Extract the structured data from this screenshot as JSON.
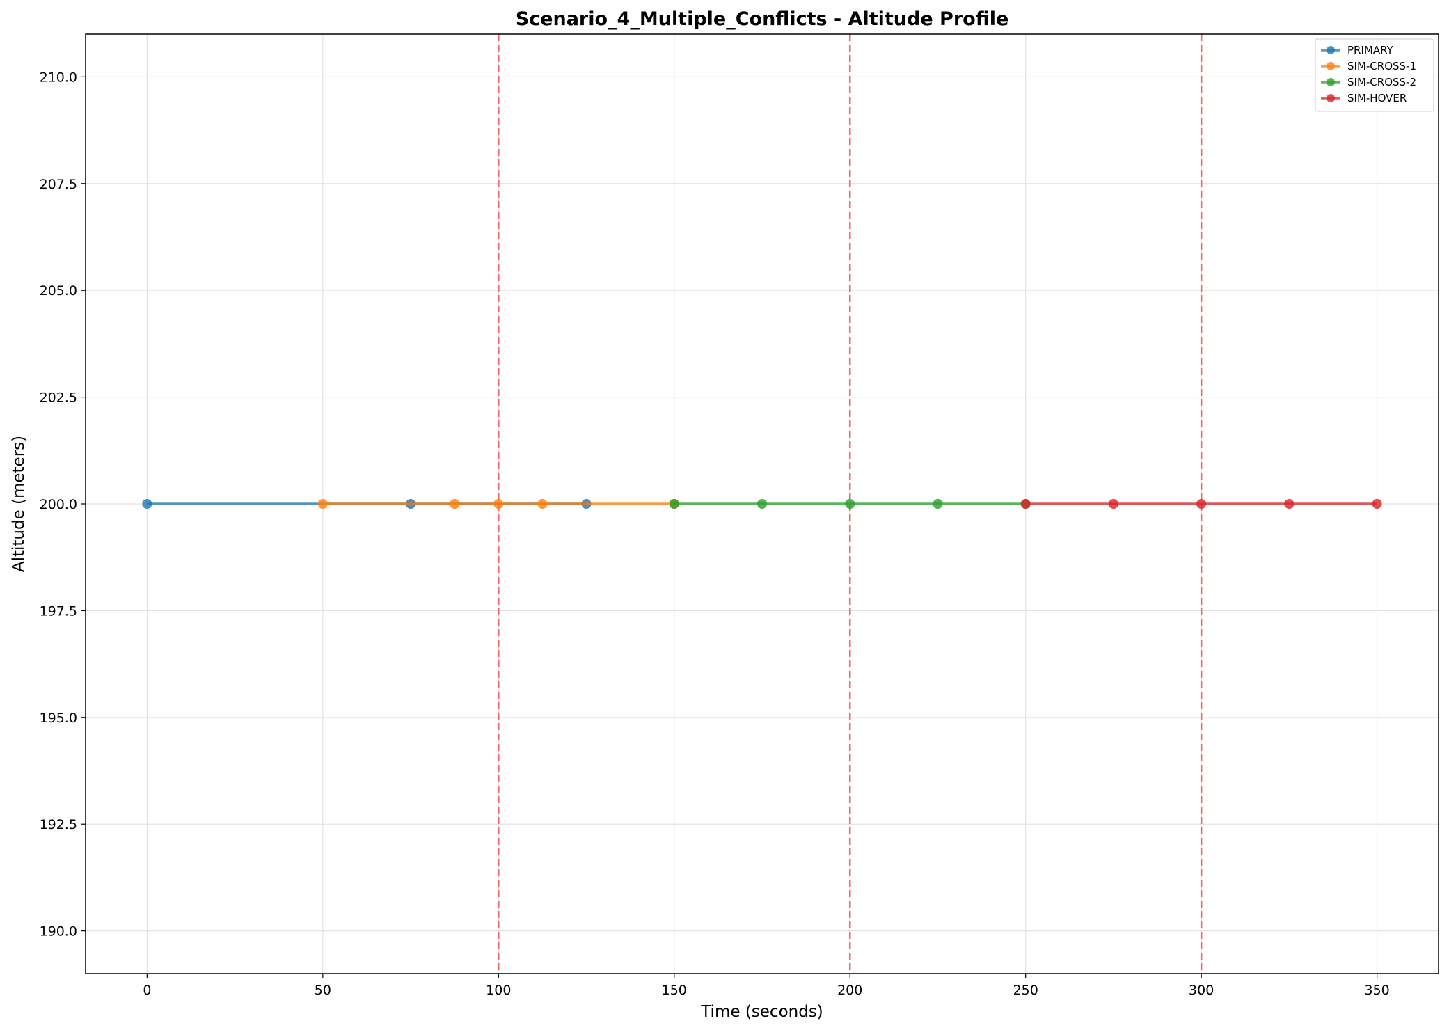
{
  "chart_data": {
    "type": "line",
    "title": "Scenario_4_Multiple_Conflicts - Altitude Profile",
    "xlabel": "Time (seconds)",
    "ylabel": "Altitude (meters)",
    "xlim": [
      -17.5,
      367.5
    ],
    "ylim": [
      189,
      211
    ],
    "xticks": [
      0,
      50,
      100,
      150,
      200,
      250,
      300,
      350
    ],
    "xtick_labels": [
      "0",
      "50",
      "100",
      "150",
      "200",
      "250",
      "300",
      "350"
    ],
    "yticks": [
      190.0,
      192.5,
      195.0,
      197.5,
      200.0,
      202.5,
      205.0,
      207.5,
      210.0
    ],
    "ytick_labels": [
      "190.0",
      "192.5",
      "195.0",
      "197.5",
      "200.0",
      "202.5",
      "205.0",
      "207.5",
      "210.0"
    ],
    "grid": true,
    "legend_position": "top-right",
    "conflict_lines": {
      "x": [
        100,
        200,
        300
      ],
      "color": "#f06767",
      "style": "dashed"
    },
    "series": [
      {
        "name": "PRIMARY",
        "color": "#1f77b4",
        "x": [
          0,
          75,
          125
        ],
        "y": [
          200,
          200,
          200
        ]
      },
      {
        "name": "SIM-CROSS-1",
        "color": "#ff7f0e",
        "x": [
          50,
          87.5,
          100,
          112.5,
          150
        ],
        "y": [
          200,
          200,
          200,
          200,
          200
        ]
      },
      {
        "name": "SIM-CROSS-2",
        "color": "#2ca02c",
        "x": [
          150,
          175,
          200,
          225,
          250
        ],
        "y": [
          200,
          200,
          200,
          200,
          200
        ]
      },
      {
        "name": "SIM-HOVER",
        "color": "#d62728",
        "x": [
          250,
          275,
          300,
          325,
          350
        ],
        "y": [
          200,
          200,
          200,
          200,
          200
        ]
      }
    ]
  }
}
